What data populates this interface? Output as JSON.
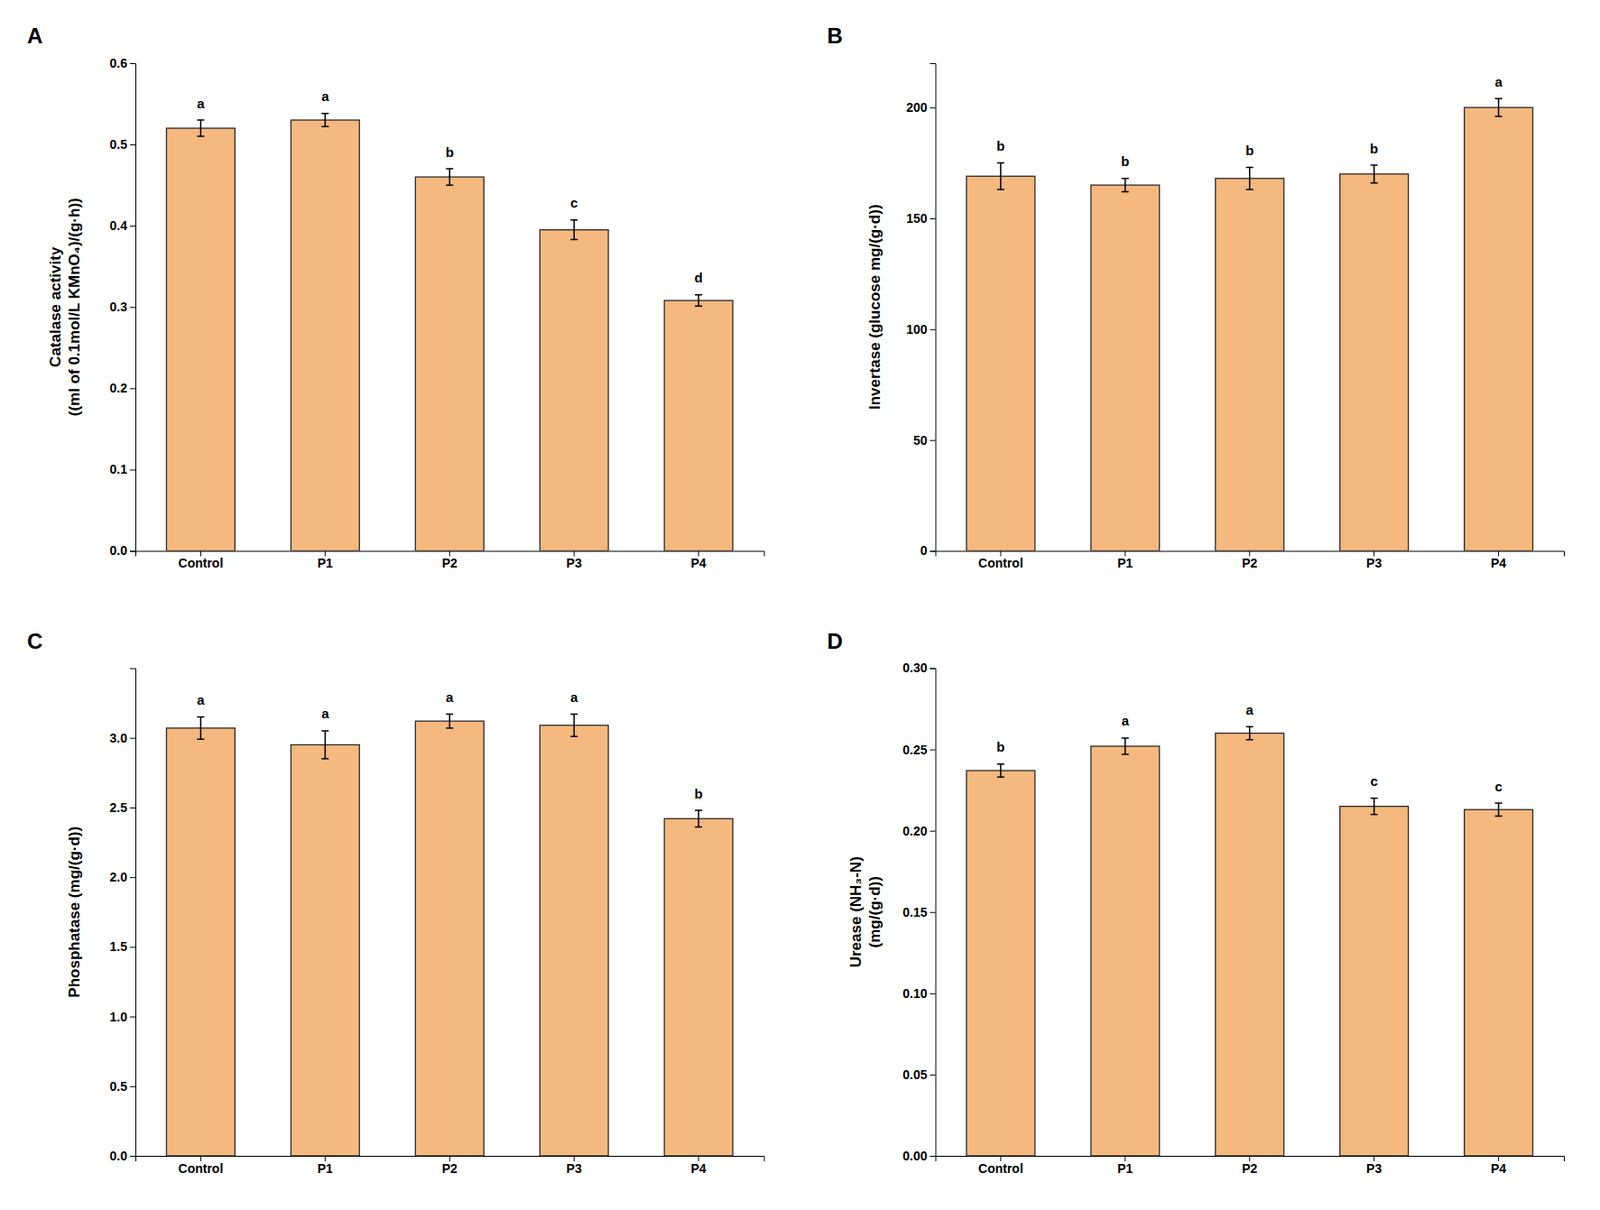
{
  "chart_data": [
    {
      "type": "bar",
      "title": "A",
      "categories": [
        "Control",
        "P1",
        "P2",
        "P3",
        "P4"
      ],
      "values": [
        0.52,
        0.53,
        0.46,
        0.395,
        0.308
      ],
      "errors": [
        0.01,
        0.008,
        0.01,
        0.012,
        0.007
      ],
      "annotations": [
        "a",
        "a",
        "b",
        "c",
        "d"
      ],
      "ylabel": "Catalase activity\n((ml of 0.1mol/L KMnO₄)/(g·h))",
      "color": "#F5B97F",
      "ylim": [
        0.0,
        0.6
      ],
      "yticks": [
        {
          "value": 0.0,
          "label": "0.0"
        },
        0.1,
        0.2,
        0.3,
        0.4,
        0.5,
        0.6
      ],
      "grid": false
    },
    {
      "type": "bar",
      "title": "B",
      "categories": [
        "Control",
        "P1",
        "P2",
        "P3",
        "P4"
      ],
      "values": [
        169,
        165,
        168,
        170,
        200
      ],
      "errors": [
        6,
        3,
        5,
        4,
        4
      ],
      "annotations": [
        "b",
        "b",
        "b",
        "b",
        "a"
      ],
      "ylabel": "Invertase (glucose mg/(g·d))",
      "color": "#F5B97F",
      "ylim": [
        0,
        220
      ],
      "yticks": [
        0,
        50,
        100,
        150,
        200
      ],
      "grid": false
    },
    {
      "type": "bar",
      "title": "C",
      "categories": [
        "Control",
        "P1",
        "P2",
        "P3",
        "P4"
      ],
      "values": [
        3.07,
        2.95,
        3.12,
        3.09,
        2.42
      ],
      "errors": [
        0.08,
        0.1,
        0.05,
        0.08,
        0.06
      ],
      "annotations": [
        "a",
        "a",
        "a",
        "a",
        "b"
      ],
      "ylabel": "Phosphatase (mg/(g·d))",
      "color": "#F5B97F",
      "ylim": [
        0.0,
        3.5
      ],
      "yticks": [
        {
          "value": 0.0,
          "label": "0.0"
        },
        0.5,
        {
          "value": 1.0,
          "label": "1.0"
        },
        1.5,
        {
          "value": 2.0,
          "label": "2.0"
        },
        2.5,
        {
          "value": 3.0,
          "label": "3.0"
        }
      ],
      "grid": false
    },
    {
      "type": "bar",
      "title": "D",
      "categories": [
        "Control",
        "P1",
        "P2",
        "P3",
        "P4"
      ],
      "values": [
        0.237,
        0.252,
        0.26,
        0.215,
        0.213
      ],
      "errors": [
        0.004,
        0.005,
        0.004,
        0.005,
        0.004
      ],
      "annotations": [
        "b",
        "a",
        "a",
        "c",
        "c"
      ],
      "ylabel": "Urease (NH₃-N)\n(mg/(g·d))",
      "color": "#F5B97F",
      "ylim": [
        0.0,
        0.3
      ],
      "yticks": [
        {
          "value": 0.0,
          "label": "0.00"
        },
        0.05,
        {
          "value": 0.1,
          "label": "0.10"
        },
        0.15,
        {
          "value": 0.2,
          "label": "0.20"
        },
        0.25,
        {
          "value": 0.3,
          "label": "0.30"
        }
      ],
      "grid": false
    }
  ]
}
